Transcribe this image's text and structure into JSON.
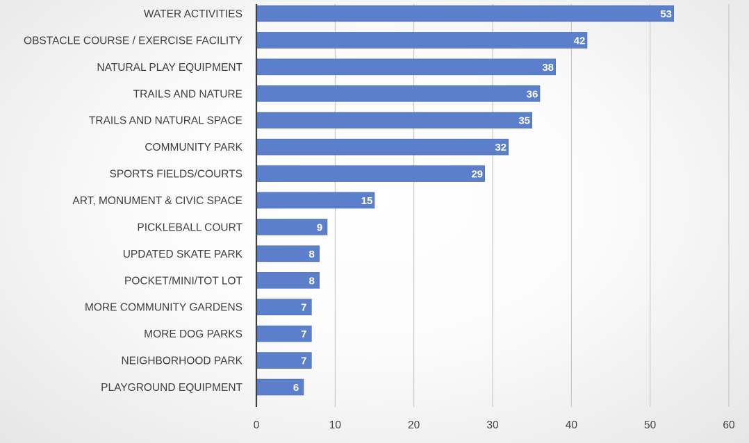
{
  "chart_data": {
    "type": "bar",
    "orientation": "horizontal",
    "title": "",
    "xlabel": "",
    "ylabel": "",
    "categories": [
      "WATER ACTIVITIES",
      "OBSTACLE COURSE / EXERCISE FACILITY",
      "NATURAL PLAY EQUIPMENT",
      "TRAILS AND NATURE",
      "TRAILS AND NATURAL SPACE",
      "COMMUNITY PARK",
      "SPORTS FIELDS/COURTS",
      "ART, MONUMENT & CIVIC SPACE",
      "PICKLEBALL COURT",
      "UPDATED SKATE PARK",
      "POCKET/MINI/TOT LOT",
      "MORE COMMUNITY GARDENS",
      "MORE DOG PARKS",
      "NEIGHBORHOOD PARK",
      "PLAYGROUND EQUIPMENT"
    ],
    "values": [
      53,
      42,
      38,
      36,
      35,
      32,
      29,
      15,
      9,
      8,
      8,
      7,
      7,
      7,
      6
    ],
    "data_labels": [
      "53",
      "42",
      "38",
      "36",
      "35",
      "32",
      "29",
      "15",
      "9",
      "8",
      "8",
      "7",
      "7",
      "7",
      "6"
    ],
    "xlim": [
      0,
      60
    ],
    "x_ticks": [
      0,
      10,
      20,
      30,
      40,
      50,
      60
    ],
    "x_tick_labels": [
      "0",
      "10",
      "20",
      "30",
      "40",
      "50",
      "60"
    ],
    "grid": "vertical",
    "legend": "none",
    "colors": {
      "bar": "#5b7fcb",
      "bar_edge": "#4a6db9",
      "grid": "#bfbfbf",
      "axis": "#404040",
      "label_text": "#404040",
      "data_label_text": "#ffffff"
    }
  }
}
